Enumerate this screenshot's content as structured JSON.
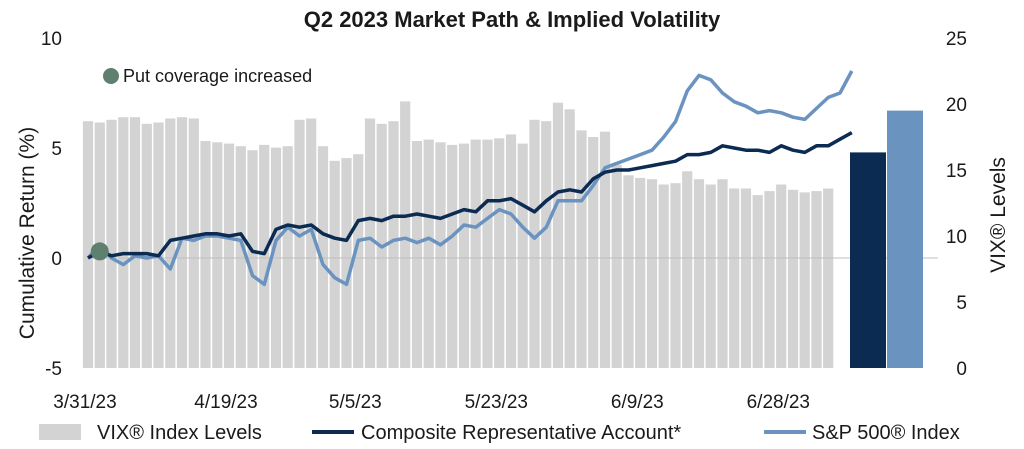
{
  "chart_data": {
    "type": "bar+line",
    "title": "Q2 2023 Market Path & Implied Volatility",
    "ylabel_left": "Cumulative Return (%)",
    "ylabel_right": "VIX® Levels",
    "ylim_left": [
      -5,
      10
    ],
    "yticks_left": [
      "10",
      "5",
      "0",
      "-5"
    ],
    "ylim_right": [
      0,
      25
    ],
    "yticks_right": [
      "25",
      "20",
      "15",
      "10",
      "5",
      "0"
    ],
    "xtick_labels": [
      "3/31/23",
      "4/19/23",
      "5/5/23",
      "5/23/23",
      "6/9/23",
      "6/28/23"
    ],
    "xtick_index": [
      0,
      12,
      23,
      35,
      47,
      59
    ],
    "annotation": {
      "text": "Put coverage increased",
      "index": 1,
      "value": 0.3,
      "marker_color": "#5f7f6f"
    },
    "legend": {
      "placement": "bottom",
      "vix": "VIX® Index Levels",
      "account": "Composite Representative Account*",
      "sp500": "S&P 500® Index"
    },
    "colors": {
      "vix": "#d3d3d3",
      "account": "#0b2b52",
      "sp500": "#6b93bf",
      "gridline": "#bfbfbf"
    },
    "vix_series": {
      "name": "VIX® Index Levels",
      "values": [
        18.7,
        18.6,
        18.8,
        19.0,
        19.0,
        18.5,
        18.6,
        18.9,
        19.0,
        18.9,
        17.2,
        17.1,
        17.0,
        16.8,
        16.5,
        16.9,
        16.7,
        16.8,
        18.8,
        18.9,
        16.8,
        15.7,
        15.9,
        16.2,
        18.9,
        18.5,
        18.7,
        20.2,
        17.2,
        17.3,
        17.1,
        16.9,
        17.0,
        17.3,
        17.3,
        17.4,
        17.7,
        17.0,
        18.8,
        18.7,
        20.1,
        19.6,
        18.0,
        17.5,
        17.9,
        15.4,
        14.6,
        14.4,
        14.3,
        13.9,
        14.0,
        14.9,
        14.3,
        13.9,
        14.3,
        13.6,
        13.6,
        13.1,
        13.4,
        13.9,
        13.5,
        13.3,
        13.4,
        13.6
      ],
      "final_bars": [
        {
          "name": "Composite Representative Account*",
          "value": 4.8
        },
        {
          "name": "S&P 500® Index",
          "value": 6.7
        }
      ]
    },
    "series": [
      {
        "name": "Composite Representative Account*",
        "values": [
          0.0,
          0.3,
          0.1,
          0.2,
          0.2,
          0.2,
          0.1,
          0.8,
          0.9,
          1.0,
          1.1,
          1.1,
          1.0,
          1.1,
          0.3,
          0.2,
          1.3,
          1.5,
          1.4,
          1.5,
          1.1,
          0.9,
          0.8,
          1.7,
          1.8,
          1.7,
          1.9,
          1.9,
          2.0,
          1.9,
          1.8,
          2.0,
          2.2,
          2.1,
          2.6,
          2.6,
          2.7,
          2.4,
          2.1,
          2.6,
          3.0,
          3.1,
          3.0,
          3.6,
          3.9,
          4.0,
          4.0,
          4.1,
          4.2,
          4.3,
          4.4,
          4.7,
          4.7,
          4.8,
          5.1,
          5.0,
          4.9,
          4.9,
          4.8,
          5.1,
          4.9,
          4.8,
          5.1,
          5.1,
          5.4,
          5.7
        ],
        "color": "#0b2b52"
      },
      {
        "name": "S&P 500® Index",
        "values": [
          0.0,
          0.6,
          0.0,
          -0.3,
          0.1,
          0.0,
          0.1,
          -0.5,
          0.9,
          0.8,
          1.0,
          1.0,
          0.9,
          0.8,
          -0.8,
          -1.2,
          0.8,
          1.4,
          1.0,
          1.3,
          -0.3,
          -0.9,
          -1.2,
          0.8,
          0.9,
          0.5,
          0.8,
          0.9,
          0.7,
          0.9,
          0.6,
          1.0,
          1.5,
          1.4,
          1.8,
          2.2,
          2.0,
          1.4,
          0.9,
          1.4,
          2.6,
          2.6,
          2.6,
          3.3,
          4.1,
          4.3,
          4.5,
          4.7,
          4.9,
          5.5,
          6.2,
          7.6,
          8.3,
          8.1,
          7.5,
          7.1,
          6.9,
          6.6,
          6.7,
          6.6,
          6.4,
          6.3,
          6.8,
          7.3,
          7.5,
          8.5
        ],
        "color": "#6b93bf"
      }
    ]
  }
}
